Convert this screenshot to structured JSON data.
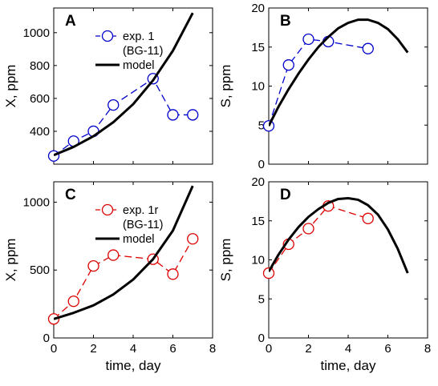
{
  "chart_data": [
    {
      "panel": "A",
      "type": "line",
      "xlabel": "",
      "ylabel": "X, ppm",
      "xlim": [
        0,
        8
      ],
      "ylim": [
        200,
        1150
      ],
      "xticks": [
        0,
        2,
        4,
        6,
        8
      ],
      "yticks": [
        400,
        600,
        800,
        1000
      ],
      "show_xticklabels": false,
      "legend": {
        "position": "top-right",
        "entries": [
          "exp. 1",
          "(BG-11)",
          "model"
        ]
      },
      "series": [
        {
          "name": "exp. 1 (BG-11)",
          "kind": "markers-dashed",
          "color": "#0000cc",
          "x": [
            0,
            1,
            2,
            3,
            5,
            6,
            7
          ],
          "y": [
            250,
            340,
            400,
            560,
            720,
            500,
            500
          ]
        },
        {
          "name": "model",
          "kind": "line",
          "color": "#000000",
          "x": [
            0,
            1,
            2,
            3,
            4,
            5,
            6,
            7
          ],
          "y": [
            255,
            305,
            370,
            455,
            565,
            710,
            890,
            1120
          ]
        }
      ]
    },
    {
      "panel": "B",
      "type": "line",
      "xlabel": "",
      "ylabel": "S, ppm",
      "xlim": [
        0,
        8
      ],
      "ylim": [
        0,
        20
      ],
      "xticks": [
        0,
        2,
        4,
        6,
        8
      ],
      "yticks": [
        0,
        5,
        10,
        15,
        20
      ],
      "show_xticklabels": false,
      "series": [
        {
          "name": "exp. 1 (BG-11)",
          "kind": "markers-dashed",
          "color": "#0000cc",
          "x": [
            0,
            1,
            2,
            3,
            5
          ],
          "y": [
            4.9,
            12.7,
            16.0,
            15.7,
            14.8
          ]
        },
        {
          "name": "model",
          "kind": "line",
          "color": "#000000",
          "x": [
            0,
            0.5,
            1,
            1.5,
            2,
            2.5,
            3,
            3.5,
            4,
            4.5,
            5,
            5.5,
            6,
            6.5,
            7
          ],
          "y": [
            4.9,
            7.4,
            9.6,
            11.6,
            13.4,
            15.0,
            16.3,
            17.4,
            18.1,
            18.5,
            18.5,
            18.1,
            17.3,
            16.0,
            14.3
          ]
        }
      ]
    },
    {
      "panel": "C",
      "type": "line",
      "xlabel": "time, day",
      "ylabel": "X, ppm",
      "xlim": [
        0,
        8
      ],
      "ylim": [
        0,
        1150
      ],
      "xticks": [
        0,
        2,
        4,
        6,
        8
      ],
      "yticks": [
        0,
        500,
        1000
      ],
      "show_xticklabels": true,
      "legend": {
        "position": "top-right",
        "entries": [
          "exp. 1r",
          "(BG-11)",
          "model"
        ]
      },
      "series": [
        {
          "name": "exp. 1r (BG-11)",
          "kind": "markers-dashed",
          "color": "#dd0000",
          "x": [
            0,
            1,
            2,
            3,
            5,
            6,
            7
          ],
          "y": [
            140,
            270,
            530,
            610,
            580,
            470,
            730
          ]
        },
        {
          "name": "model",
          "kind": "line",
          "color": "#000000",
          "x": [
            0,
            1,
            2,
            3,
            4,
            5,
            6,
            7
          ],
          "y": [
            140,
            185,
            240,
            320,
            430,
            580,
            790,
            1120
          ]
        }
      ]
    },
    {
      "panel": "D",
      "type": "line",
      "xlabel": "time, day",
      "ylabel": "S, ppm",
      "xlim": [
        0,
        8
      ],
      "ylim": [
        0,
        20
      ],
      "xticks": [
        0,
        2,
        4,
        6,
        8
      ],
      "yticks": [
        0,
        5,
        10,
        15,
        20
      ],
      "show_xticklabels": true,
      "series": [
        {
          "name": "exp. 1r (BG-11)",
          "kind": "markers-dashed",
          "color": "#dd0000",
          "x": [
            0,
            1,
            2,
            3,
            5
          ],
          "y": [
            8.3,
            12.0,
            14.0,
            16.9,
            15.3
          ]
        },
        {
          "name": "model",
          "kind": "line",
          "color": "#000000",
          "x": [
            0,
            0.5,
            1,
            1.5,
            2,
            2.5,
            3,
            3.5,
            4,
            4.5,
            5,
            5.5,
            6,
            6.5,
            7
          ],
          "y": [
            8.5,
            10.7,
            12.6,
            14.2,
            15.5,
            16.5,
            17.3,
            17.8,
            17.9,
            17.7,
            17.0,
            15.8,
            13.9,
            11.4,
            8.3
          ]
        }
      ]
    }
  ]
}
